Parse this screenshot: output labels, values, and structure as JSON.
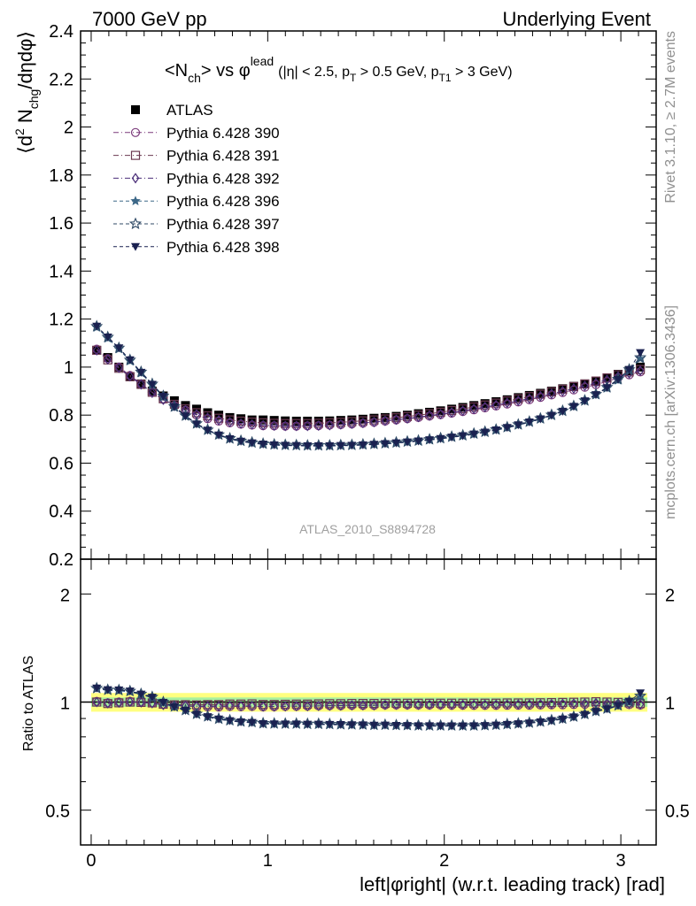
{
  "header": {
    "left": "7000 GeV pp",
    "right": "Underlying Event"
  },
  "side_labels": {
    "rivet": "Rivet 3.1.10, ≥ 2.7M events",
    "mcplots": "mcplots.cern.ch [arXiv:1306.3436]"
  },
  "watermark": "ATLAS_2010_S8894728",
  "legend_order": [
    "ATLAS",
    "Pythia 6.428 390",
    "Pythia 6.428 391",
    "Pythia 6.428 392",
    "Pythia 6.428 396",
    "Pythia 6.428 397",
    "Pythia 6.428 398"
  ],
  "chart_data": [
    {
      "panel": "main",
      "type": "scatter",
      "title_main": "<N",
      "title_sub": "ch",
      "title_vs": "> vs φ",
      "title_sup": "lead",
      "title_cuts_a": "(|η| < 2.5, p",
      "title_cuts_sub_a": "T",
      "title_cuts_b": " > 0.5 GeV, p",
      "title_cuts_sub_b": "T1",
      "title_cuts_c": " > 3 GeV)",
      "ylabel_a": "⟨d",
      "ylabel_sup": "2",
      "ylabel_b": " N",
      "ylabel_sub": "chg",
      "ylabel_c": "/dηdφ⟩",
      "xlabel": "left|φright| (w.r.t. leading track) [rad]",
      "xlim": [
        -0.06,
        3.2
      ],
      "ylim": [
        0.2,
        2.4
      ],
      "x_ticks": [
        0,
        1,
        2,
        3
      ],
      "y_ticks": [
        0.2,
        0.4,
        0.6,
        0.8,
        1,
        1.2,
        1.4,
        1.6,
        1.8,
        2,
        2.2,
        2.4
      ],
      "y_tick_labels": [
        "0.2",
        "0.4",
        "0.6",
        "0.8",
        "1",
        "1.2",
        "1.4",
        "1.6",
        "1.8",
        "2",
        "2.2",
        "2.4"
      ],
      "x": [
        0.0314,
        0.0942,
        0.1571,
        0.2199,
        0.2827,
        0.3456,
        0.4084,
        0.4712,
        0.5341,
        0.5969,
        0.6597,
        0.7226,
        0.7854,
        0.8482,
        0.911,
        0.9739,
        1.0367,
        1.0996,
        1.1624,
        1.2252,
        1.2881,
        1.3509,
        1.4137,
        1.4765,
        1.5394,
        1.6022,
        1.665,
        1.7279,
        1.7907,
        1.8535,
        1.9164,
        1.9792,
        2.042,
        2.1049,
        2.1677,
        2.2305,
        2.2934,
        2.3562,
        2.419,
        2.4819,
        2.5447,
        2.6075,
        2.6704,
        2.7332,
        2.796,
        2.8588,
        2.9217,
        2.9845,
        3.0473,
        3.1102
      ],
      "series": [
        {
          "name": "ATLAS",
          "marker": "filled-square",
          "color": "#000000",
          "values": [
            1.07,
            1.04,
            1.0,
            0.96,
            0.93,
            0.9,
            0.88,
            0.86,
            0.84,
            0.825,
            0.81,
            0.8,
            0.79,
            0.785,
            0.78,
            0.78,
            0.778,
            0.776,
            0.775,
            0.775,
            0.775,
            0.776,
            0.778,
            0.78,
            0.783,
            0.787,
            0.79,
            0.795,
            0.8,
            0.806,
            0.812,
            0.818,
            0.825,
            0.832,
            0.84,
            0.848,
            0.856,
            0.864,
            0.873,
            0.882,
            0.891,
            0.9,
            0.91,
            0.92,
            0.93,
            0.94,
            0.955,
            0.97,
            0.985,
            1.0
          ]
        },
        {
          "name": "Pythia 6.428 390",
          "marker": "open-circle",
          "color": "#7b3a7b",
          "dash": "6,3,1,3",
          "values": [
            1.075,
            1.035,
            1.0,
            0.965,
            0.93,
            0.895,
            0.865,
            0.84,
            0.82,
            0.8,
            0.785,
            0.775,
            0.768,
            0.762,
            0.758,
            0.756,
            0.755,
            0.754,
            0.754,
            0.755,
            0.756,
            0.758,
            0.76,
            0.763,
            0.766,
            0.77,
            0.775,
            0.78,
            0.785,
            0.79,
            0.796,
            0.802,
            0.808,
            0.815,
            0.822,
            0.83,
            0.838,
            0.846,
            0.855,
            0.864,
            0.874,
            0.884,
            0.894,
            0.905,
            0.916,
            0.927,
            0.94,
            0.955,
            0.968,
            0.98
          ]
        },
        {
          "name": "Pythia 6.428 391",
          "marker": "open-square",
          "color": "#6b3850",
          "dash": "6,3,1,3",
          "values": [
            1.07,
            1.03,
            0.995,
            0.96,
            0.928,
            0.895,
            0.868,
            0.845,
            0.826,
            0.81,
            0.797,
            0.787,
            0.78,
            0.775,
            0.771,
            0.768,
            0.766,
            0.765,
            0.765,
            0.765,
            0.766,
            0.768,
            0.77,
            0.773,
            0.776,
            0.78,
            0.784,
            0.789,
            0.794,
            0.8,
            0.806,
            0.812,
            0.819,
            0.826,
            0.834,
            0.842,
            0.85,
            0.859,
            0.868,
            0.877,
            0.887,
            0.897,
            0.908,
            0.919,
            0.93,
            0.942,
            0.955,
            0.968,
            0.98,
            0.99
          ]
        },
        {
          "name": "Pythia 6.428 392",
          "marker": "open-diamond",
          "color": "#4a2d78",
          "dash": "6,3,1,3",
          "values": [
            1.07,
            1.032,
            0.997,
            0.962,
            0.928,
            0.893,
            0.864,
            0.84,
            0.82,
            0.803,
            0.789,
            0.779,
            0.771,
            0.765,
            0.761,
            0.758,
            0.756,
            0.755,
            0.755,
            0.755,
            0.756,
            0.758,
            0.761,
            0.764,
            0.767,
            0.771,
            0.776,
            0.781,
            0.786,
            0.792,
            0.798,
            0.804,
            0.811,
            0.818,
            0.826,
            0.834,
            0.842,
            0.851,
            0.86,
            0.869,
            0.879,
            0.889,
            0.9,
            0.911,
            0.922,
            0.934,
            0.947,
            0.961,
            0.974,
            0.985
          ]
        },
        {
          "name": "Pythia 6.428 396",
          "marker": "filled-star",
          "color": "#3d6888",
          "dash": "4,3",
          "values": [
            1.165,
            1.12,
            1.075,
            1.025,
            0.975,
            0.925,
            0.875,
            0.832,
            0.795,
            0.762,
            0.736,
            0.716,
            0.7,
            0.69,
            0.683,
            0.678,
            0.675,
            0.673,
            0.672,
            0.671,
            0.671,
            0.671,
            0.672,
            0.673,
            0.675,
            0.677,
            0.68,
            0.683,
            0.687,
            0.691,
            0.696,
            0.701,
            0.707,
            0.713,
            0.72,
            0.728,
            0.737,
            0.747,
            0.758,
            0.77,
            0.783,
            0.798,
            0.815,
            0.835,
            0.858,
            0.884,
            0.912,
            0.945,
            0.985,
            1.035
          ]
        },
        {
          "name": "Pythia 6.428 397",
          "marker": "open-star",
          "color": "#2f4a66",
          "dash": "4,3",
          "values": [
            1.17,
            1.125,
            1.08,
            1.03,
            0.98,
            0.93,
            0.88,
            0.836,
            0.798,
            0.765,
            0.739,
            0.719,
            0.703,
            0.693,
            0.686,
            0.681,
            0.678,
            0.676,
            0.675,
            0.674,
            0.674,
            0.674,
            0.675,
            0.676,
            0.678,
            0.68,
            0.683,
            0.686,
            0.69,
            0.694,
            0.699,
            0.704,
            0.71,
            0.716,
            0.723,
            0.731,
            0.74,
            0.75,
            0.761,
            0.773,
            0.786,
            0.801,
            0.818,
            0.838,
            0.861,
            0.887,
            0.916,
            0.95,
            0.99,
            1.04
          ]
        },
        {
          "name": "Pythia 6.428 398",
          "marker": "filled-triangle-down",
          "color": "#1a2150",
          "dash": "4,3",
          "values": [
            1.17,
            1.125,
            1.08,
            1.03,
            0.978,
            0.928,
            0.878,
            0.834,
            0.796,
            0.763,
            0.737,
            0.717,
            0.701,
            0.691,
            0.684,
            0.679,
            0.676,
            0.674,
            0.673,
            0.672,
            0.672,
            0.672,
            0.673,
            0.674,
            0.676,
            0.678,
            0.681,
            0.684,
            0.688,
            0.692,
            0.697,
            0.702,
            0.708,
            0.714,
            0.721,
            0.729,
            0.738,
            0.748,
            0.759,
            0.771,
            0.784,
            0.799,
            0.816,
            0.836,
            0.859,
            0.885,
            0.914,
            0.948,
            0.99,
            1.06
          ]
        }
      ]
    },
    {
      "panel": "ratio",
      "type": "scatter",
      "ylabel": "Ratio to ATLAS",
      "xlabel": "left|φright| (w.r.t. leading track) [rad]",
      "xlim": [
        -0.06,
        3.2
      ],
      "ylim": [
        0.4,
        2.5
      ],
      "log_scale_y": true,
      "y_tick_labels": [
        "0.5",
        "1",
        "2"
      ],
      "x_tick_labels": [
        "0",
        "1",
        "2",
        "3"
      ],
      "band_inner": 0.03,
      "band_outer": 0.06,
      "note": "series values are ratios of each Pythia series to ATLAS"
    }
  ]
}
